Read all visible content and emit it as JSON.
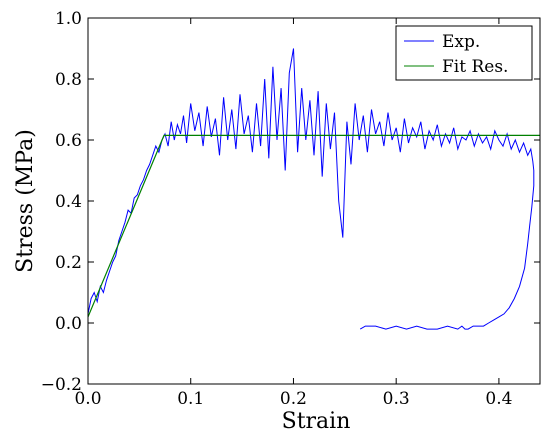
{
  "chart_data": {
    "type": "line",
    "xlabel": "Strain",
    "ylabel": "Stress (MPa)",
    "xlim": [
      0.0,
      0.44
    ],
    "ylim": [
      -0.2,
      1.0
    ],
    "x_ticks": [
      0.0,
      0.1,
      0.2,
      0.3,
      0.4
    ],
    "x_tick_labels": [
      "0.0",
      "0.1",
      "0.2",
      "0.3",
      "0.4"
    ],
    "y_ticks": [
      -0.2,
      0.0,
      0.2,
      0.4,
      0.6,
      0.8,
      1.0
    ],
    "y_tick_labels": [
      "−0.2",
      "0.0",
      "0.2",
      "0.4",
      "0.6",
      "0.8",
      "1.0"
    ],
    "grid": false,
    "legend_position": "top-right",
    "series": [
      {
        "name": "Exp.",
        "color": "#0000ff",
        "x": [
          0.0,
          0.003,
          0.006,
          0.009,
          0.012,
          0.015,
          0.018,
          0.021,
          0.024,
          0.027,
          0.03,
          0.033,
          0.036,
          0.039,
          0.042,
          0.045,
          0.048,
          0.051,
          0.054,
          0.057,
          0.06,
          0.063,
          0.066,
          0.069,
          0.072,
          0.075,
          0.078,
          0.081,
          0.084,
          0.087,
          0.09,
          0.093,
          0.096,
          0.1,
          0.104,
          0.108,
          0.112,
          0.116,
          0.12,
          0.124,
          0.128,
          0.132,
          0.136,
          0.14,
          0.144,
          0.148,
          0.152,
          0.156,
          0.16,
          0.164,
          0.168,
          0.172,
          0.176,
          0.18,
          0.184,
          0.188,
          0.192,
          0.196,
          0.2,
          0.204,
          0.208,
          0.212,
          0.216,
          0.22,
          0.224,
          0.228,
          0.232,
          0.236,
          0.24,
          0.244,
          0.248,
          0.252,
          0.256,
          0.26,
          0.264,
          0.268,
          0.272,
          0.276,
          0.28,
          0.284,
          0.288,
          0.292,
          0.296,
          0.3,
          0.304,
          0.308,
          0.312,
          0.316,
          0.32,
          0.324,
          0.328,
          0.332,
          0.336,
          0.34,
          0.344,
          0.348,
          0.352,
          0.356,
          0.36,
          0.364,
          0.368,
          0.372,
          0.376,
          0.38,
          0.384,
          0.388,
          0.392,
          0.396,
          0.4,
          0.404,
          0.408,
          0.412,
          0.416,
          0.42,
          0.424,
          0.428,
          0.431,
          0.433,
          0.434,
          0.434,
          0.432,
          0.43,
          0.428,
          0.425,
          0.42,
          0.415,
          0.41,
          0.405,
          0.4,
          0.395,
          0.39,
          0.385,
          0.38,
          0.375,
          0.37,
          0.367,
          0.364,
          0.36,
          0.35,
          0.34,
          0.33,
          0.32,
          0.31,
          0.3,
          0.29,
          0.28,
          0.27,
          0.265
        ],
        "y": [
          0.03,
          0.08,
          0.1,
          0.07,
          0.12,
          0.1,
          0.14,
          0.17,
          0.2,
          0.22,
          0.27,
          0.3,
          0.33,
          0.37,
          0.36,
          0.41,
          0.42,
          0.45,
          0.47,
          0.5,
          0.52,
          0.55,
          0.58,
          0.56,
          0.6,
          0.62,
          0.58,
          0.66,
          0.6,
          0.65,
          0.62,
          0.68,
          0.59,
          0.72,
          0.63,
          0.69,
          0.58,
          0.71,
          0.61,
          0.67,
          0.55,
          0.74,
          0.6,
          0.7,
          0.57,
          0.75,
          0.62,
          0.68,
          0.56,
          0.72,
          0.58,
          0.8,
          0.54,
          0.84,
          0.6,
          0.77,
          0.5,
          0.82,
          0.9,
          0.56,
          0.77,
          0.6,
          0.73,
          0.55,
          0.76,
          0.48,
          0.72,
          0.57,
          0.69,
          0.4,
          0.28,
          0.66,
          0.52,
          0.72,
          0.6,
          0.68,
          0.56,
          0.7,
          0.62,
          0.66,
          0.58,
          0.69,
          0.6,
          0.64,
          0.56,
          0.67,
          0.59,
          0.64,
          0.61,
          0.66,
          0.57,
          0.63,
          0.6,
          0.65,
          0.58,
          0.62,
          0.59,
          0.64,
          0.57,
          0.61,
          0.6,
          0.63,
          0.58,
          0.62,
          0.59,
          0.61,
          0.57,
          0.63,
          0.6,
          0.58,
          0.62,
          0.57,
          0.6,
          0.56,
          0.59,
          0.55,
          0.57,
          0.53,
          0.5,
          0.45,
          0.38,
          0.32,
          0.26,
          0.18,
          0.12,
          0.08,
          0.05,
          0.03,
          0.02,
          0.01,
          0.0,
          -0.01,
          -0.01,
          -0.01,
          -0.02,
          -0.02,
          -0.01,
          -0.02,
          -0.01,
          -0.02,
          -0.02,
          -0.01,
          -0.02,
          -0.01,
          -0.02,
          -0.01,
          -0.01,
          -0.02
        ]
      },
      {
        "name": "Fit Res.",
        "color": "#008000",
        "x": [
          0.0,
          0.074,
          0.44
        ],
        "y": [
          0.02,
          0.615,
          0.615
        ]
      }
    ]
  }
}
